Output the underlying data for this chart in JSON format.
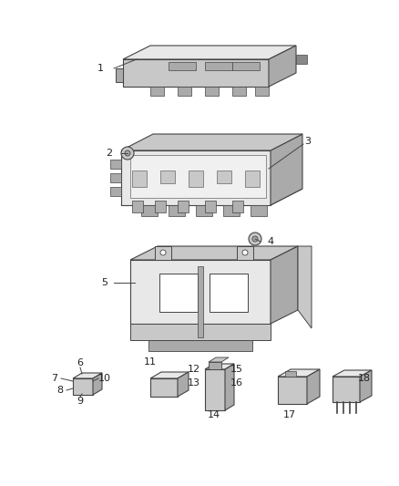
{
  "bg_color": "#ffffff",
  "lc": "#444444",
  "lc_thin": "#666666",
  "fc_light": "#e8e8e8",
  "fc_mid": "#c8c8c8",
  "fc_dark": "#aaaaaa",
  "fc_vdark": "#888888",
  "label_color": "#222222",
  "label_fs": 8.0,
  "fig_w": 4.38,
  "fig_h": 5.33,
  "dpi": 100
}
